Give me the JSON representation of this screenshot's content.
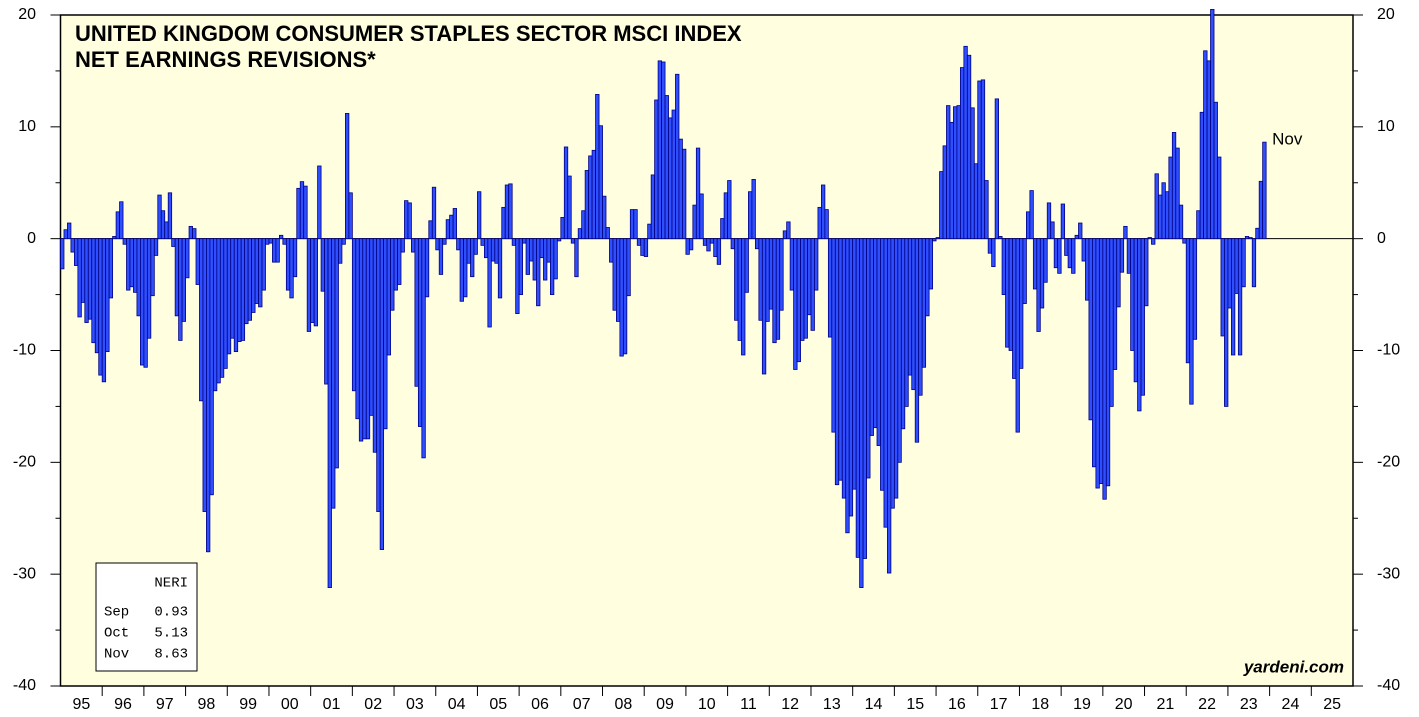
{
  "chart_data": {
    "type": "bar",
    "title_lines": [
      "UNITED KINGDOM CONSUMER STAPLES SECTOR MSCI INDEX",
      "NET EARNINGS REVISIONS*"
    ],
    "x_labels": [
      "95",
      "96",
      "97",
      "98",
      "99",
      "00",
      "01",
      "02",
      "03",
      "04",
      "05",
      "06",
      "07",
      "08",
      "09",
      "10",
      "11",
      "12",
      "13",
      "14",
      "15",
      "16",
      "17",
      "18",
      "19",
      "20",
      "21",
      "22",
      "23",
      "24",
      "25"
    ],
    "values": [
      -2.7,
      0.8,
      1.4,
      -1.2,
      -2.4,
      -7.0,
      -5.7,
      -7.5,
      -7.2,
      -9.3,
      -10.2,
      -12.2,
      -12.8,
      -10.1,
      -5.3,
      0.2,
      2.4,
      3.3,
      -0.5,
      -4.6,
      -4.3,
      -4.8,
      -6.9,
      -11.3,
      -11.5,
      -8.9,
      -5.1,
      -1.5,
      3.9,
      2.5,
      1.5,
      4.1,
      -0.7,
      -6.9,
      -9.1,
      -7.4,
      -3.5,
      1.1,
      0.9,
      -4.1,
      -14.5,
      -24.4,
      -28.0,
      -22.9,
      -13.6,
      -12.9,
      -12.4,
      -11.6,
      -10.3,
      -8.9,
      -10.1,
      -9.2,
      -9.1,
      -7.6,
      -7.3,
      -6.6,
      -5.8,
      -6.1,
      -4.6,
      -0.5,
      -0.4,
      -2.1,
      -2.1,
      0.3,
      -0.5,
      -4.6,
      -5.3,
      -3.4,
      4.5,
      5.1,
      4.7,
      -8.3,
      -7.5,
      -7.8,
      6.5,
      -4.7,
      -13.0,
      -31.2,
      -24.1,
      -20.5,
      -2.2,
      -0.5,
      11.2,
      4.1,
      -13.6,
      -16.1,
      -18.1,
      -17.9,
      -17.9,
      -15.8,
      -19.1,
      -24.4,
      -27.8,
      -17.0,
      -10.4,
      -6.4,
      -4.6,
      -4.1,
      -1.2,
      3.4,
      3.2,
      -1.2,
      -13.2,
      -16.8,
      -19.6,
      -5.2,
      1.6,
      4.6,
      -1.0,
      -3.2,
      -0.5,
      1.7,
      2.1,
      2.7,
      -1.0,
      -5.6,
      -5.2,
      -2.2,
      -3.4,
      -1.4,
      4.2,
      -0.6,
      -1.7,
      -7.9,
      -2.0,
      -2.2,
      -5.3,
      2.8,
      4.8,
      4.9,
      -0.6,
      -6.7,
      -5.0,
      -0.4,
      -3.2,
      -2.0,
      -3.7,
      -6.0,
      -1.7,
      -3.7,
      -2.1,
      -5.0,
      -3.6,
      -0.2,
      1.9,
      8.2,
      5.6,
      -0.4,
      -3.4,
      0.9,
      2.5,
      6.1,
      7.4,
      7.9,
      12.9,
      10.1,
      3.8,
      1.0,
      -2.1,
      -6.4,
      -7.4,
      -10.5,
      -10.3,
      -5.1,
      2.6,
      2.6,
      -0.6,
      -1.5,
      -1.6,
      1.3,
      5.7,
      12.4,
      15.9,
      15.8,
      12.8,
      10.8,
      11.5,
      14.7,
      8.9,
      8.0,
      -1.4,
      -1.0,
      3.0,
      8.1,
      4.0,
      -0.6,
      -1.1,
      -0.4,
      -1.6,
      -2.3,
      1.8,
      4.1,
      5.2,
      -0.9,
      -7.3,
      -9.1,
      -10.4,
      -4.8,
      4.2,
      5.3,
      -0.9,
      -7.3,
      -12.1,
      -7.4,
      -6.3,
      -9.3,
      -9.0,
      -6.4,
      0.7,
      1.5,
      -4.6,
      -11.7,
      -11.0,
      -9.1,
      -8.9,
      -6.8,
      -8.2,
      -4.6,
      2.8,
      4.8,
      2.6,
      -8.8,
      -17.3,
      -22.0,
      -21.6,
      -23.2,
      -26.3,
      -24.8,
      -22.4,
      -28.5,
      -31.2,
      -28.6,
      -21.4,
      -17.6,
      -16.9,
      -18.5,
      -22.5,
      -25.8,
      -29.9,
      -24.1,
      -23.2,
      -20.0,
      -17.0,
      -15.0,
      -12.2,
      -13.5,
      -18.2,
      -14.0,
      -11.5,
      -6.9,
      -4.5,
      -0.2,
      0.1,
      6.0,
      8.3,
      11.9,
      10.4,
      11.8,
      11.9,
      15.3,
      17.2,
      16.4,
      11.7,
      6.7,
      14.1,
      14.2,
      5.2,
      -1.3,
      -2.5,
      12.5,
      0.2,
      -5.0,
      -9.7,
      -10.0,
      -12.5,
      -17.3,
      -11.6,
      -5.8,
      2.4,
      4.3,
      -4.5,
      -8.3,
      -6.2,
      -3.9,
      3.2,
      1.5,
      -2.6,
      -3.1,
      3.1,
      -1.5,
      -2.6,
      -3.1,
      0.3,
      1.4,
      -2.0,
      -5.5,
      -16.2,
      -20.4,
      -22.3,
      -21.9,
      -23.3,
      -22.1,
      -15.0,
      -11.7,
      -6.1,
      -3.0,
      1.1,
      -3.1,
      -10.0,
      -12.8,
      -15.4,
      -14.0,
      -6.0,
      0.1,
      -0.5,
      5.8,
      3.9,
      5.0,
      4.2,
      7.3,
      9.5,
      8.1,
      3.0,
      -0.4,
      -11.1,
      -14.8,
      -9.0,
      2.5,
      11.3,
      16.8,
      15.9,
      20.5,
      12.2,
      7.3,
      -8.7,
      -15.0,
      -6.2,
      -10.4,
      -4.9,
      -10.4,
      -4.3,
      0.2,
      0.1,
      -4.3,
      0.93,
      5.13,
      8.63
    ],
    "color": "#2f4fff",
    "edge": "#000080",
    "background": "#ffffe0",
    "ylim": [
      -40,
      20
    ],
    "yticks": [
      -40,
      -30,
      -20,
      -10,
      0,
      10,
      20
    ],
    "yminor_ticks": [
      -35,
      -25,
      -15,
      -5,
      5,
      15
    ],
    "annotation": "Nov",
    "legend": {
      "header": "NERI",
      "months": [
        "Sep",
        "Oct",
        "Nov"
      ]
    },
    "source": "yardeni.com"
  }
}
